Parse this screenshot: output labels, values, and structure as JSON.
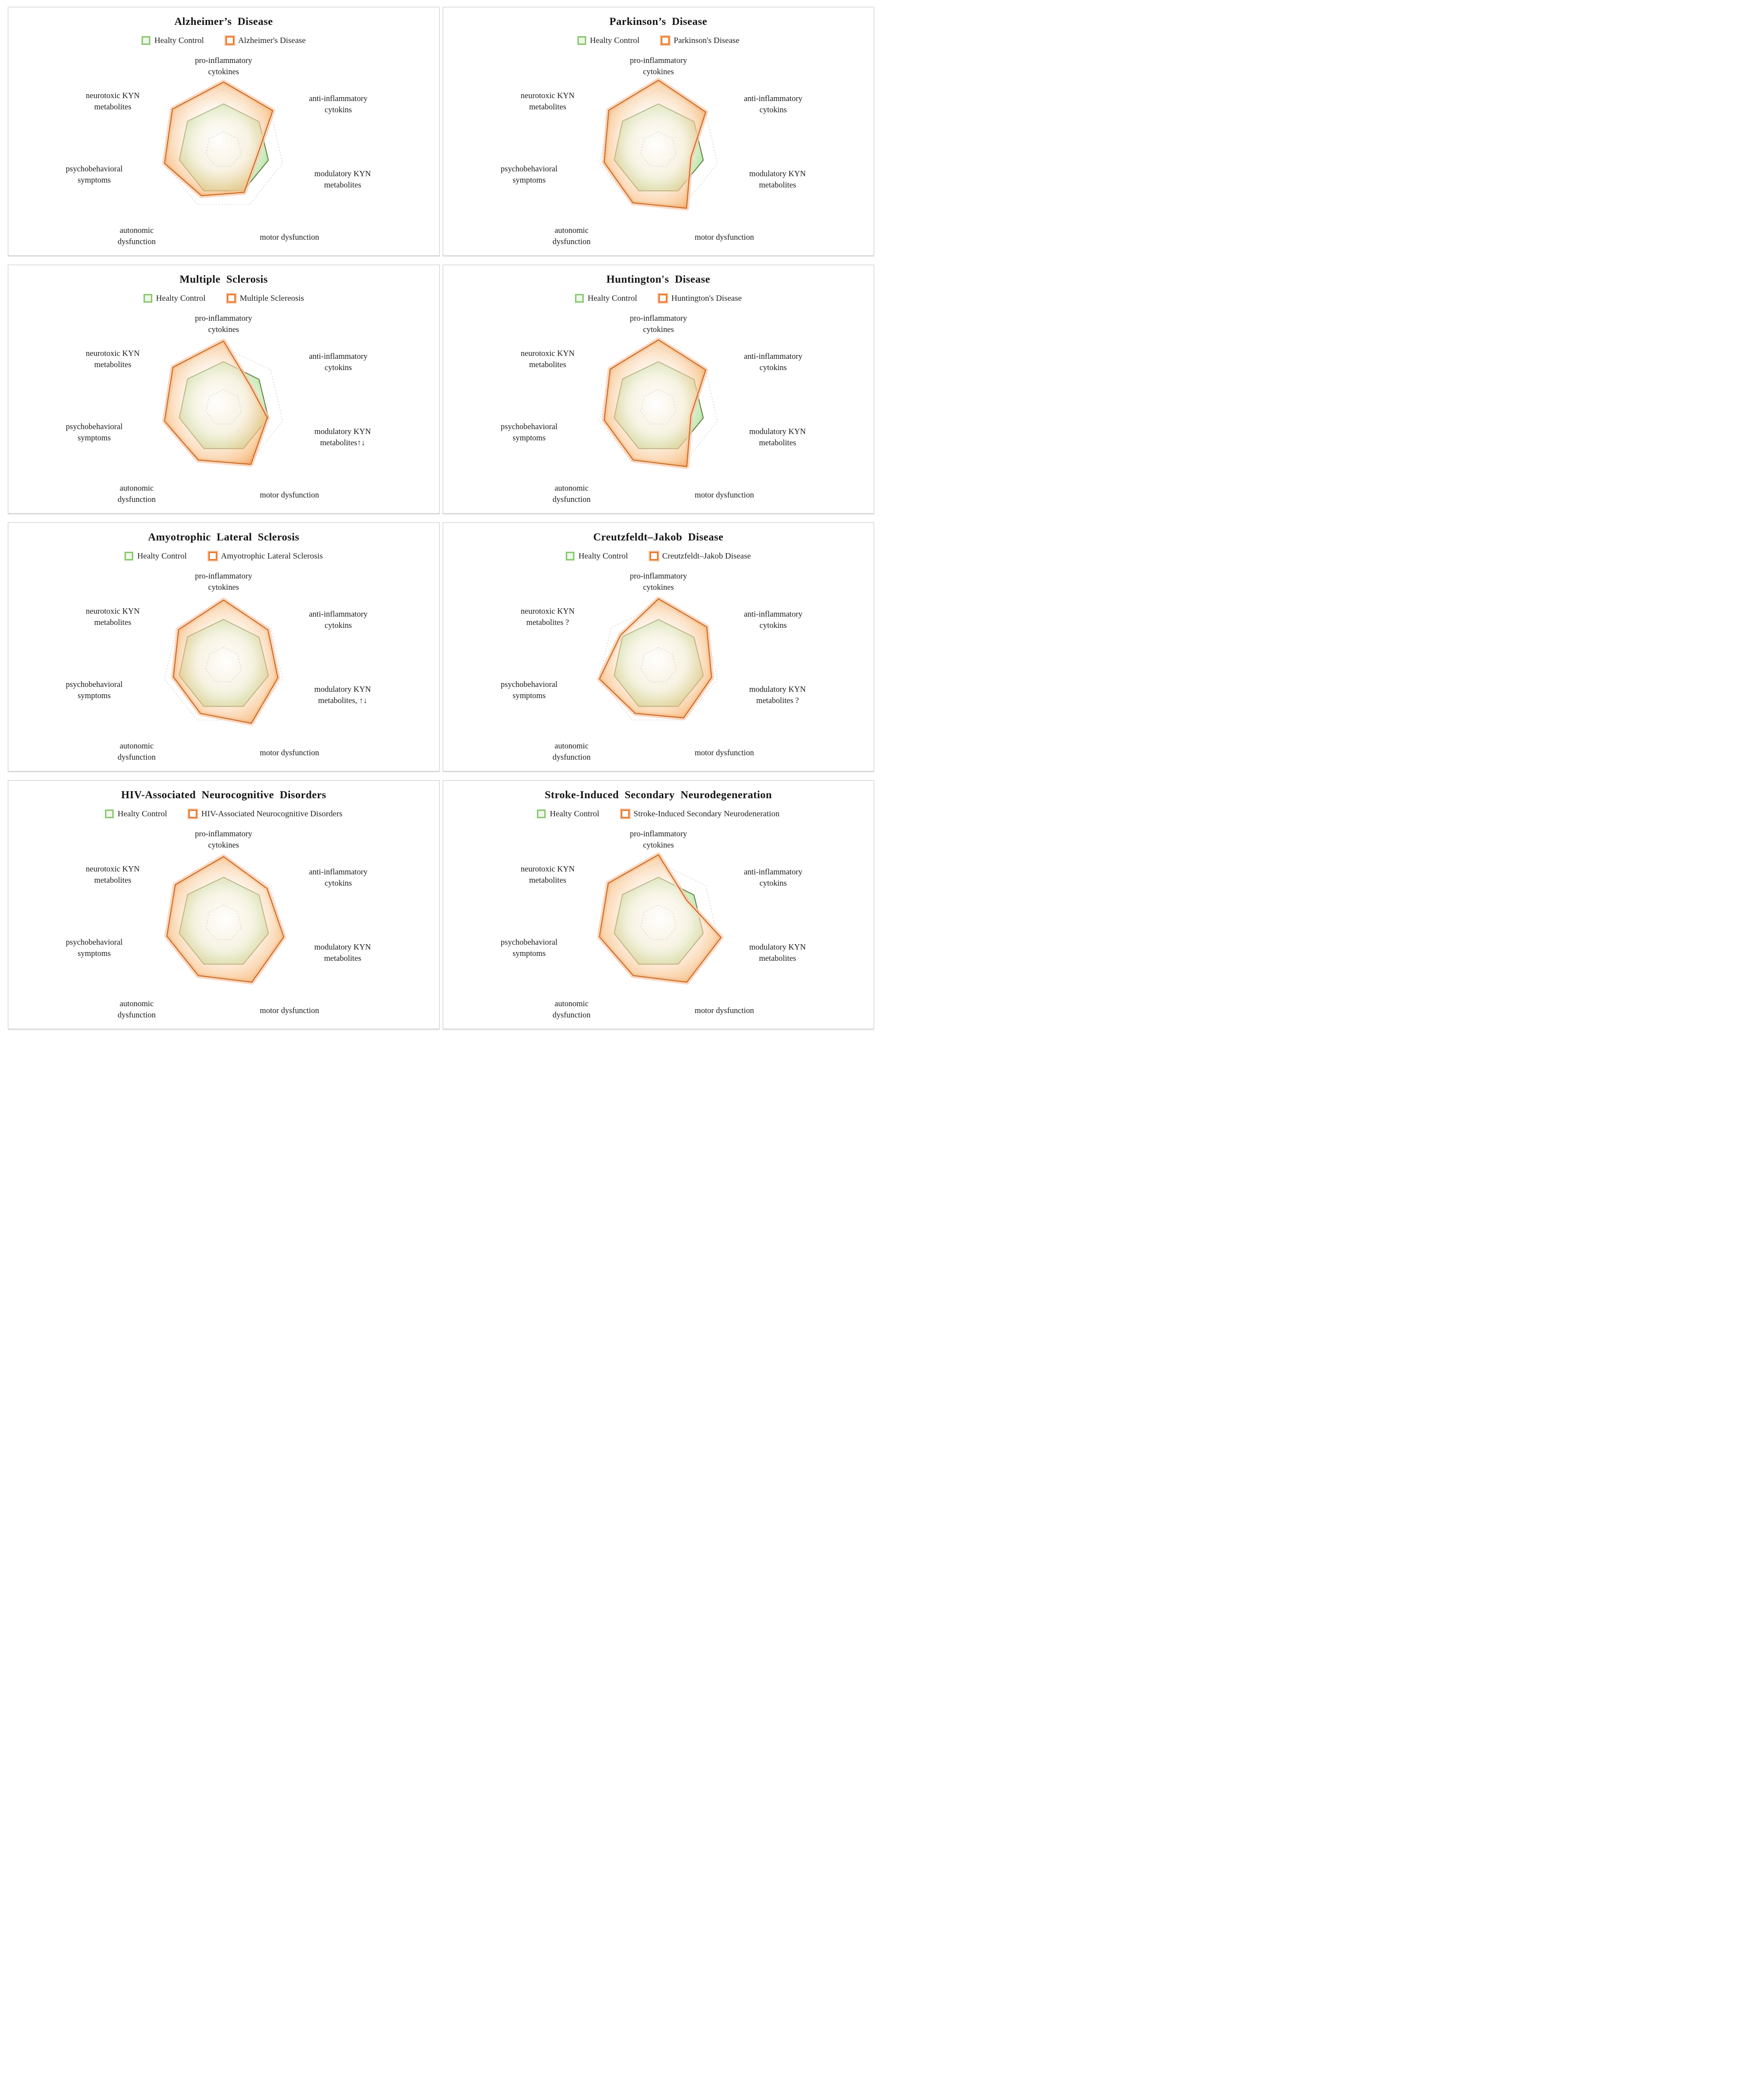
{
  "colors": {
    "healthy_green": "#70AD47",
    "healthy_green_light": "#8CDB6E",
    "disease_orange": "#ED7D31",
    "disease_orange_glow": "#F8CBAD",
    "grid_gray": "#C9C9C9",
    "text": "#1B1B1B",
    "card_border": "#C8C8C8"
  },
  "radar_scale": {
    "rings": [
      0.3,
      0.65,
      1.0
    ],
    "outer_ring_value": 1.0,
    "plot_max": 1.2
  },
  "chart_data": [
    {
      "type": "radar",
      "title": "Alzheimer’s Disease",
      "legend_position": "top",
      "categories": [
        "pro-inflammatory cytokines",
        "anti-inflammatory cytokins",
        "modulatory KYN metabolites",
        "motor dysfunction",
        "autonomic dysfunction",
        "psychobehavioral symptoms",
        "neurotoxic KYN metabolites"
      ],
      "categories_lines": [
        [
          "pro-inflammatory",
          "cytokines"
        ],
        [
          "anti-inflammatory",
          "cytokins"
        ],
        [
          "modulatory KYN",
          "metabolites"
        ],
        [
          "motor dysfunction"
        ],
        [
          "autonomic",
          "dysfunction"
        ],
        [
          "psychobehavioral",
          "symptoms"
        ],
        [
          "neurotoxic KYN",
          "metabolites"
        ]
      ],
      "series": [
        {
          "name": "Healty Control",
          "values": [
            0.76,
            0.75,
            0.76,
            0.75,
            0.75,
            0.75,
            0.76
          ]
        },
        {
          "name": "Alzheimer's Disease",
          "values": [
            1.12,
            1.04,
            0.56,
            0.78,
            0.84,
            1.0,
            1.08
          ]
        }
      ]
    },
    {
      "type": "radar",
      "title": "Parkinson’s Disease",
      "legend_position": "top",
      "categories": [
        "pro-inflammatory cytokines",
        "anti-inflammatory cytokins",
        "modulatory KYN metabolites",
        "motor dysfunction",
        "autonomic dysfunction",
        "psychobehavioral symptoms",
        "neurotoxic KYN metabolites"
      ],
      "categories_lines": [
        [
          "pro-inflammatory",
          "cytokines"
        ],
        [
          "anti-inflammatory",
          "cytokins"
        ],
        [
          "modulatory KYN",
          "metabolites"
        ],
        [
          "motor dysfunction"
        ],
        [
          "autonomic",
          "dysfunction"
        ],
        [
          "psychobehavioral",
          "symptoms"
        ],
        [
          "neurotoxic KYN",
          "metabolites"
        ]
      ],
      "series": [
        {
          "name": "Healty Control",
          "values": [
            0.76,
            0.75,
            0.76,
            0.75,
            0.75,
            0.75,
            0.76
          ]
        },
        {
          "name": "Parkinson's Disease",
          "values": [
            1.15,
            1.0,
            0.55,
            1.07,
            0.97,
            0.92,
            1.05
          ]
        }
      ]
    },
    {
      "type": "radar",
      "title": "Multiple Sclerosis",
      "legend_position": "top",
      "categories": [
        "pro-inflammatory cytokines",
        "anti-inflammatory cytokins",
        "modulatory KYN metabolites↑↓",
        "motor dysfunction",
        "autonomic dysfunction",
        "psychobehavioral symptoms",
        "neurotoxic KYN metabolites"
      ],
      "categories_lines": [
        [
          "pro-inflammatory",
          "cytokines"
        ],
        [
          "anti-inflammatory",
          "cytokins"
        ],
        [
          "modulatory KYN",
          "metabolites↑↓"
        ],
        [
          "motor dysfunction"
        ],
        [
          "autonomic",
          "dysfunction"
        ],
        [
          "psychobehavioral",
          "symptoms"
        ],
        [
          "neurotoxic KYN",
          "metabolites"
        ]
      ],
      "series": [
        {
          "name": "Healty Control",
          "values": [
            0.76,
            0.75,
            0.76,
            0.75,
            0.75,
            0.75,
            0.76
          ]
        },
        {
          "name": "Multiple Sclereosis",
          "values": [
            1.1,
            0.57,
            0.74,
            1.04,
            0.96,
            1.0,
            1.07
          ]
        }
      ]
    },
    {
      "type": "radar",
      "title": "Huntington's Disease",
      "legend_position": "top",
      "categories": [
        "pro-inflammatory cytokines",
        "anti-inflammatory cytokins",
        "modulatory KYN metabolites",
        "motor dysfunction",
        "autonomic dysfunction",
        "psychobehavioral symptoms",
        "neurotoxic KYN metabolites"
      ],
      "categories_lines": [
        [
          "pro-inflammatory",
          "cytokines"
        ],
        [
          "anti-inflammatory",
          "cytokins"
        ],
        [
          "modulatory KYN",
          "metabolites"
        ],
        [
          "motor dysfunction"
        ],
        [
          "autonomic",
          "dysfunction"
        ],
        [
          "psychobehavioral",
          "symptoms"
        ],
        [
          "neurotoxic KYN",
          "metabolites"
        ]
      ],
      "series": [
        {
          "name": "Healty Control",
          "values": [
            0.76,
            0.75,
            0.76,
            0.75,
            0.75,
            0.75,
            0.76
          ]
        },
        {
          "name": "Huntington's Disease",
          "values": [
            1.12,
            1.0,
            0.55,
            1.08,
            0.96,
            0.92,
            1.02
          ]
        }
      ]
    },
    {
      "type": "radar",
      "title": "Amyotrophic Lateral Sclerosis",
      "legend_position": "top",
      "categories": [
        "pro-inflammatory cytokines",
        "anti-inflammatory cytokins",
        "modulatory KYN metabolites, ↑↓",
        "motor dysfunction",
        "autonomic dysfunction",
        "psychobehavioral symptoms",
        "neurotoxic KYN metabolites"
      ],
      "categories_lines": [
        [
          "pro-inflammatory",
          "cytokines"
        ],
        [
          "anti-inflammatory",
          "cytokins"
        ],
        [
          "modulatory KYN",
          "metabolites, ↑↓"
        ],
        [
          "motor dysfunction"
        ],
        [
          "autonomic",
          "dysfunction"
        ],
        [
          "psychobehavioral",
          "symptoms"
        ],
        [
          "neurotoxic KYN",
          "metabolites"
        ]
      ],
      "series": [
        {
          "name": "Healty Control",
          "values": [
            0.76,
            0.75,
            0.76,
            0.75,
            0.75,
            0.75,
            0.76
          ]
        },
        {
          "name": "Amyotrophic Lateral Sclerosis",
          "values": [
            1.08,
            0.94,
            0.92,
            1.06,
            0.88,
            0.85,
            0.95
          ]
        }
      ]
    },
    {
      "type": "radar",
      "title": "Creutzfeldt–Jakob Disease",
      "legend_position": "top",
      "categories": [
        "pro-inflammatory cytokines",
        "anti-inflammatory cytokins",
        "modulatory KYN metabolites ?",
        "motor dysfunction",
        "autonomic dysfunction",
        "psychobehavioral symptoms",
        "neurotoxic KYN metabolites ?"
      ],
      "categories_lines": [
        [
          "pro-inflammatory",
          "cytokines"
        ],
        [
          "anti-inflammatory",
          "cytokins"
        ],
        [
          "modulatory KYN",
          "metabolites ?"
        ],
        [
          "motor dysfunction"
        ],
        [
          "autonomic",
          "dysfunction"
        ],
        [
          "psychobehavioral",
          "symptoms"
        ],
        [
          "neurotoxic KYN",
          "metabolites ?"
        ]
      ],
      "series": [
        {
          "name": "Healty Control",
          "values": [
            0.76,
            0.75,
            0.76,
            0.75,
            0.75,
            0.75,
            0.76
          ]
        },
        {
          "name": "Creutzfeldt–Jakob Disease",
          "values": [
            1.1,
            1.02,
            0.9,
            0.96,
            0.88,
            1.0,
            0.8
          ]
        }
      ]
    },
    {
      "type": "radar",
      "title": "HIV-Associated Neurocognitive Disorders",
      "legend_position": "top",
      "categories": [
        "pro-inflammatory cytokines",
        "anti-inflammatory cytokins",
        "modulatory KYN metabolites",
        "motor dysfunction",
        "autonomic dysfunction",
        "psychobehavioral symptoms",
        "neurotoxic KYN metabolites"
      ],
      "categories_lines": [
        [
          "pro-inflammatory",
          "cytokines"
        ],
        [
          "anti-inflammatory",
          "cytokins"
        ],
        [
          "modulatory KYN",
          "metabolites"
        ],
        [
          "motor dysfunction"
        ],
        [
          "autonomic",
          "dysfunction"
        ],
        [
          "psychobehavioral",
          "symptoms"
        ],
        [
          "neurotoxic KYN",
          "metabolites"
        ]
      ],
      "series": [
        {
          "name": "Healty Control",
          "values": [
            0.76,
            0.75,
            0.76,
            0.75,
            0.75,
            0.75,
            0.76
          ]
        },
        {
          "name": "HIV-Associated Neurocognitive Disorders",
          "values": [
            1.1,
            0.92,
            1.02,
            1.08,
            0.96,
            0.96,
            1.02
          ]
        }
      ]
    },
    {
      "type": "radar",
      "title": "Stroke-Induced Secondary Neurodegeneration",
      "legend_position": "top",
      "categories": [
        "pro-inflammatory cytokines",
        "anti-inflammatory cytokins",
        "modulatory KYN metabolites",
        "motor dysfunction",
        "autonomic dysfunction",
        "psychobehavioral symptoms",
        "neurotoxic KYN metabolites"
      ],
      "categories_lines": [
        [
          "pro-inflammatory",
          "cytokines"
        ],
        [
          "anti-inflammatory",
          "cytokins"
        ],
        [
          "modulatory KYN",
          "metabolites"
        ],
        [
          "motor dysfunction"
        ],
        [
          "autonomic",
          "dysfunction"
        ],
        [
          "psychobehavioral",
          "symptoms"
        ],
        [
          "neurotoxic KYN",
          "metabolites"
        ]
      ],
      "series": [
        {
          "name": "Healty Control",
          "values": [
            0.76,
            0.75,
            0.76,
            0.75,
            0.75,
            0.75,
            0.76
          ]
        },
        {
          "name": "Stroke-Induced Secondary Neurodeneration",
          "values": [
            1.13,
            0.6,
            1.06,
            1.08,
            0.96,
            1.0,
            1.06
          ]
        }
      ]
    }
  ]
}
